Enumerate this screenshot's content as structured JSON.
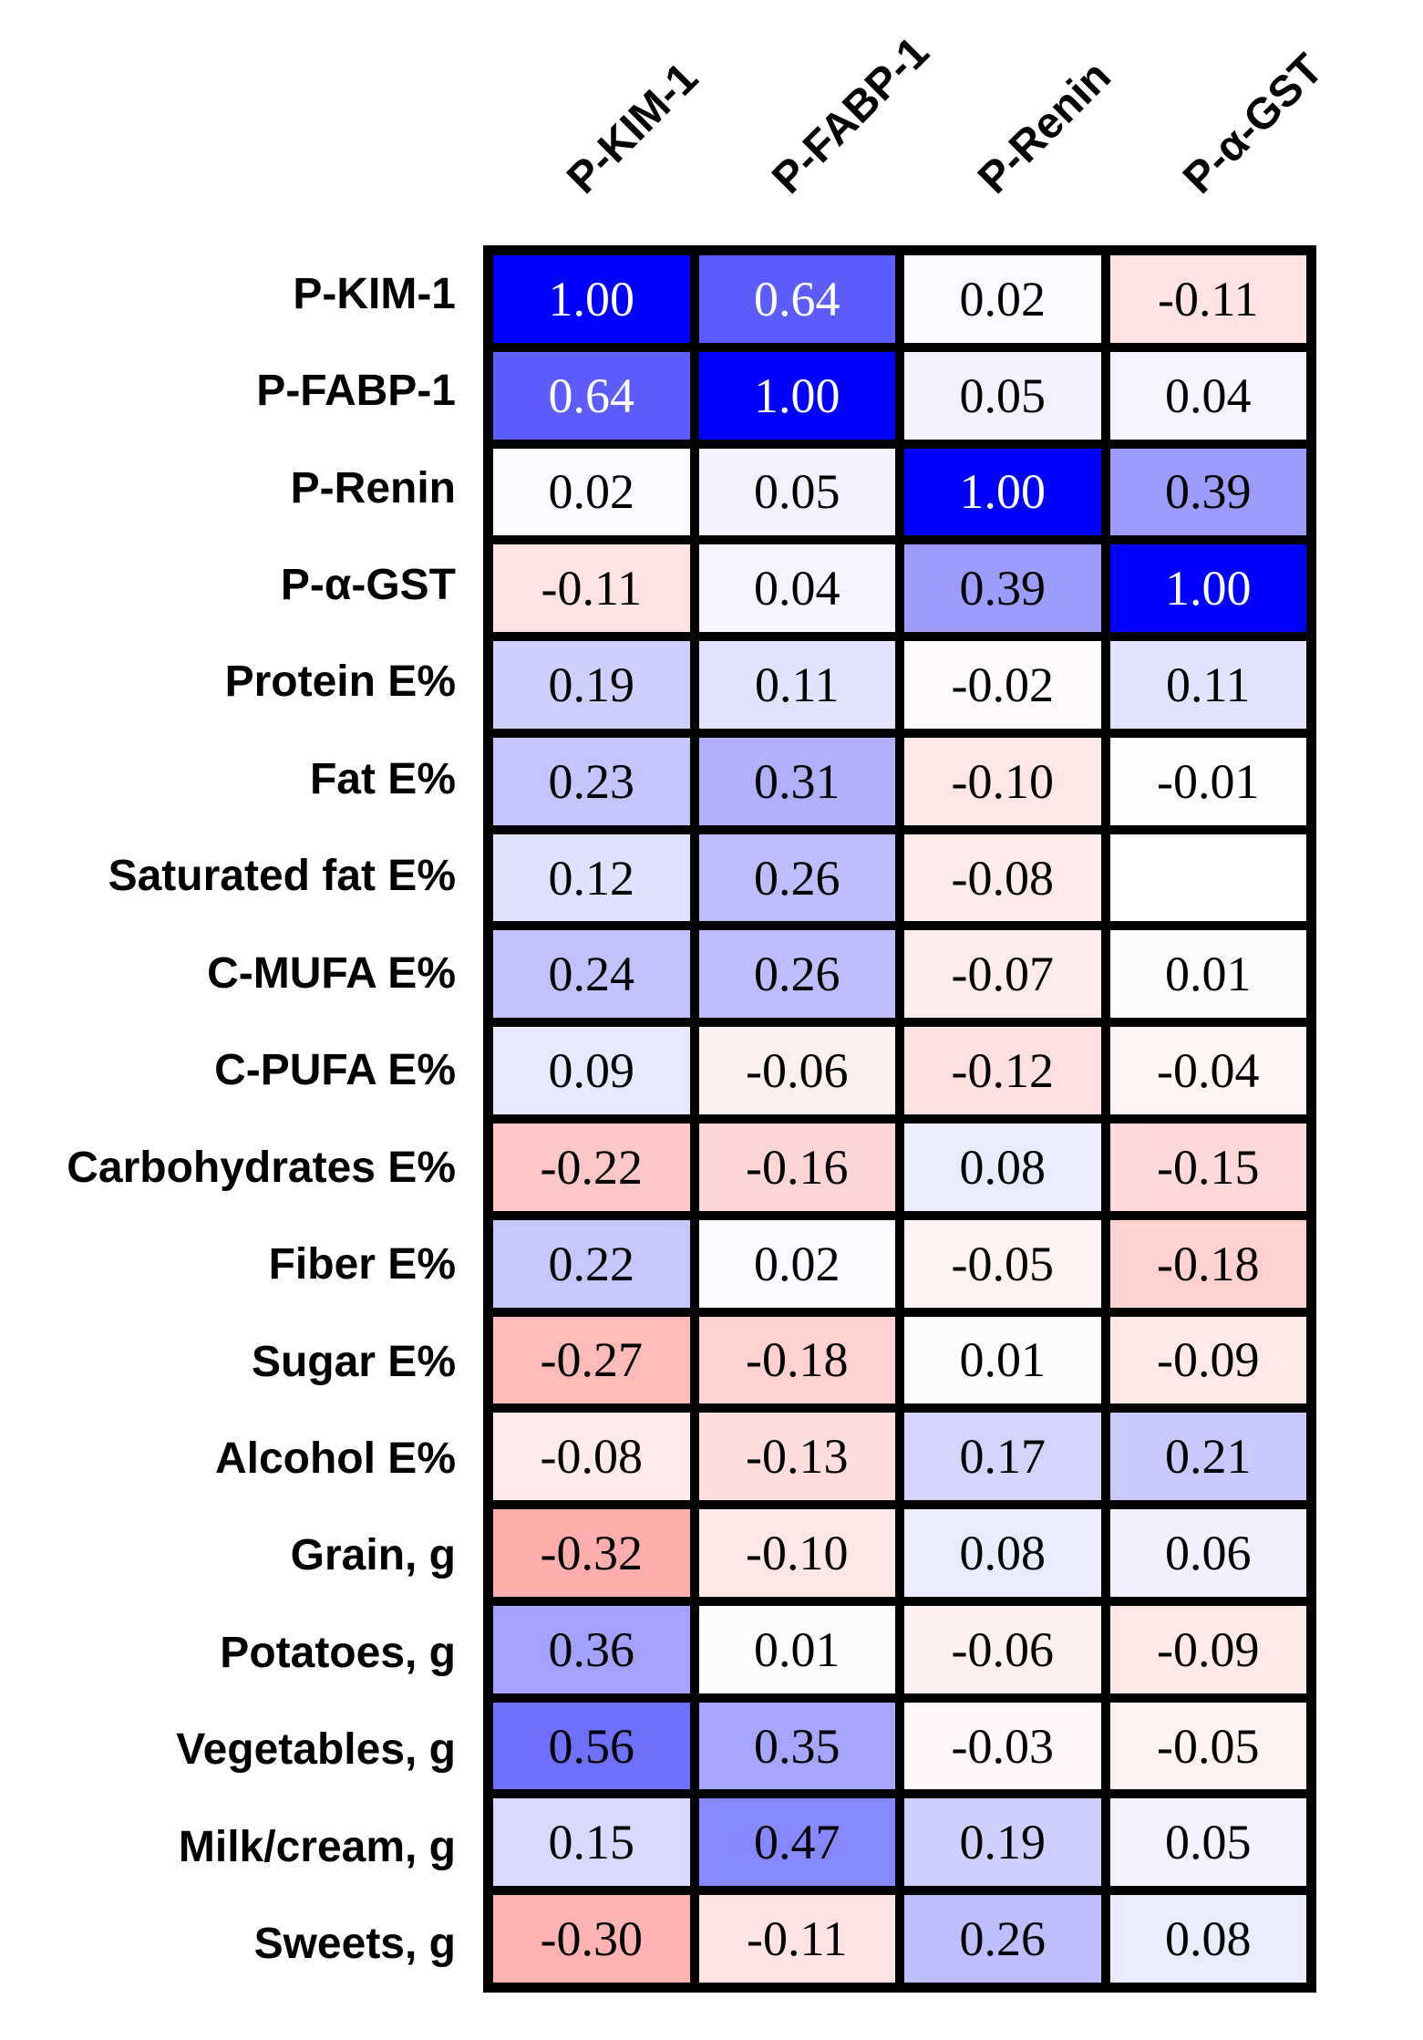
{
  "figure": {
    "background": "#FFFFFF",
    "border_color": "#000000"
  },
  "chart_data": {
    "type": "heatmap",
    "title": "",
    "columns": [
      "P-KIM-1",
      "P-FABP-1",
      "P-Renin",
      "P-α-GST"
    ],
    "rows": [
      "P-KIM-1",
      "P-FABP-1",
      "P-Renin",
      "P-α-GST",
      "Protein E%",
      "Fat E%",
      "Saturated fat E%",
      "C-MUFA E%",
      "C-PUFA E%",
      "Carbohydrates E%",
      "Fiber E%",
      "Sugar E%",
      "Alcohol E%",
      "Grain, g",
      "Potatoes, g",
      "Vegetables, g",
      "Milk/cream, g",
      "Sweets, g"
    ],
    "values": [
      [
        1.0,
        0.64,
        0.02,
        -0.11
      ],
      [
        0.64,
        1.0,
        0.05,
        0.04
      ],
      [
        0.02,
        0.05,
        1.0,
        0.39
      ],
      [
        -0.11,
        0.04,
        0.39,
        1.0
      ],
      [
        0.19,
        0.11,
        -0.02,
        0.11
      ],
      [
        0.23,
        0.31,
        -0.1,
        -0.01
      ],
      [
        0.12,
        0.26,
        -0.08,
        null
      ],
      [
        0.24,
        0.26,
        -0.07,
        0.01
      ],
      [
        0.09,
        -0.06,
        -0.12,
        -0.04
      ],
      [
        -0.22,
        -0.16,
        0.08,
        -0.15
      ],
      [
        0.22,
        0.02,
        -0.05,
        -0.18
      ],
      [
        -0.27,
        -0.18,
        0.01,
        -0.09
      ],
      [
        -0.08,
        -0.13,
        0.17,
        0.21
      ],
      [
        -0.32,
        -0.1,
        0.08,
        0.06
      ],
      [
        0.36,
        0.01,
        -0.06,
        -0.09
      ],
      [
        0.56,
        0.35,
        -0.03,
        -0.05
      ],
      [
        0.15,
        0.47,
        0.19,
        0.05
      ],
      [
        -0.3,
        -0.11,
        0.26,
        0.08
      ]
    ],
    "value_decimals": 2,
    "colormap": {
      "negative": "#FF0000",
      "zero": "#FFFFFF",
      "positive": "#0000FF",
      "domain": [
        -1,
        1
      ]
    },
    "white_text_threshold": 0.6,
    "cell_text_color": "#000000",
    "cell_text_color_high": "#FFFFFF",
    "legend": "none",
    "grid": "black cell borders"
  }
}
